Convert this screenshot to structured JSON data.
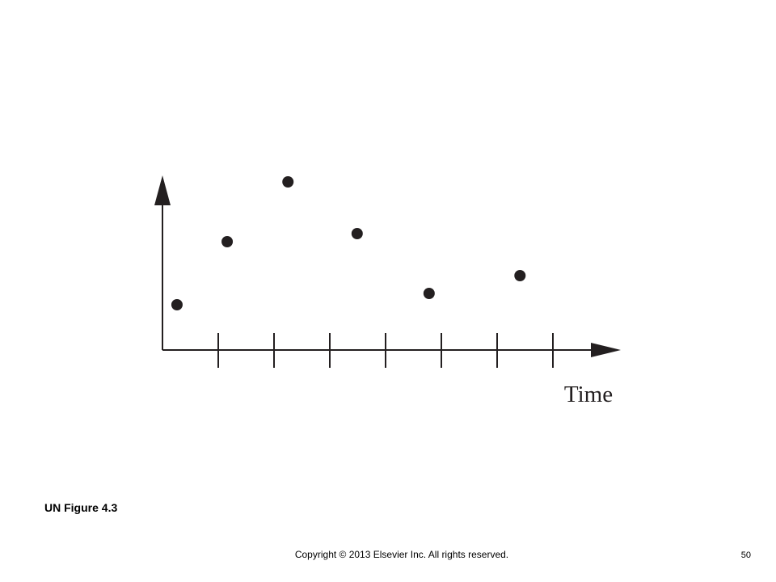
{
  "chart_data": {
    "type": "scatter",
    "xlabel": "Time",
    "x": [
      0.26,
      1.16,
      2.25,
      3.49,
      4.78,
      6.41
    ],
    "values": [
      2.8,
      6.7,
      10.4,
      7.2,
      3.5,
      4.6
    ],
    "color": "#231f20",
    "xlim": [
      0,
      8
    ],
    "ylim": [
      0,
      11
    ],
    "xticks": [
      1,
      2,
      3,
      4,
      5,
      6,
      7
    ]
  },
  "slide": {
    "caption": "UN Figure 4.3",
    "copyright": "Copyright © 2013 Elsevier Inc. All rights reserved.",
    "page_number": "50"
  }
}
